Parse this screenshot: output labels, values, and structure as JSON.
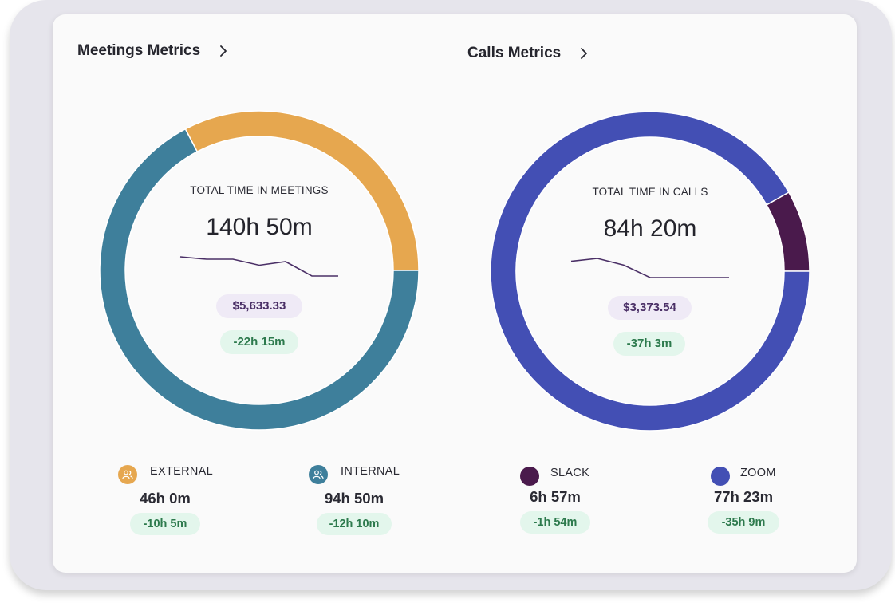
{
  "meetings": {
    "title": "Meetings Metrics",
    "center_label": "TOTAL TIME IN MEETINGS",
    "total": "140h 50m",
    "cost": "$5,633.33",
    "delta": "-22h 15m",
    "legend": [
      {
        "name": "EXTERNAL",
        "value": "46h 0m",
        "delta": "-10h 5m",
        "color": "#e6a74f",
        "icon": "people-icon"
      },
      {
        "name": "INTERNAL",
        "value": "94h 50m",
        "delta": "-12h 10m",
        "color": "#3e7f9b",
        "icon": "people-icon"
      }
    ]
  },
  "calls": {
    "title": "Calls Metrics",
    "center_label": "TOTAL TIME IN CALLS",
    "total": "84h 20m",
    "cost": "$3,373.54",
    "delta": "-37h 3m",
    "legend": [
      {
        "name": "SLACK",
        "value": "6h 57m",
        "delta": "-1h 54m",
        "color": "#4a1a4c"
      },
      {
        "name": "ZOOM",
        "value": "77h 23m",
        "delta": "-35h 9m",
        "color": "#434fb4"
      }
    ]
  },
  "chart_data": [
    {
      "type": "pie",
      "title": "TOTAL TIME IN MEETINGS",
      "unit": "minutes",
      "categories": [
        "EXTERNAL",
        "INTERNAL"
      ],
      "values": [
        2760,
        5690
      ],
      "colors": [
        "#e6a74f",
        "#3e7f9b"
      ],
      "sparkline": {
        "values": [
          10,
          9.8,
          9.8,
          9.3,
          9.6,
          8.4,
          8.4
        ],
        "color": "#4a2f66"
      }
    },
    {
      "type": "pie",
      "title": "TOTAL TIME IN CALLS",
      "unit": "minutes",
      "categories": [
        "SLACK",
        "ZOOM"
      ],
      "values": [
        417,
        4643
      ],
      "colors": [
        "#4a1a4c",
        "#434fb4"
      ],
      "sparkline": {
        "values": [
          10,
          10.3,
          9.6,
          8.3,
          8.3,
          8.3,
          8.3
        ],
        "color": "#4a2f66"
      }
    }
  ]
}
